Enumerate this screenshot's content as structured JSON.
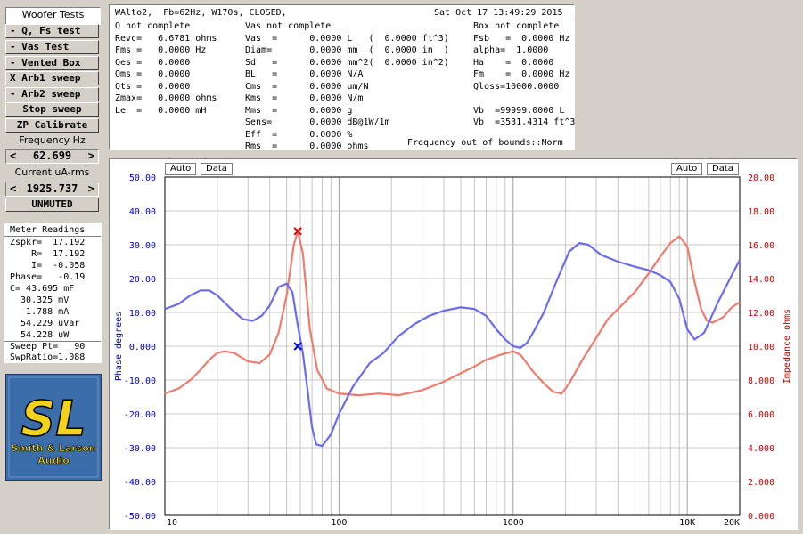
{
  "sidebar": {
    "title": "Woofer Tests",
    "buttons": [
      "- Q, Fs test",
      "- Vas Test",
      "- Vented Box",
      "X Arb1 sweep",
      "- Arb2 sweep",
      "Stop sweep",
      "ZP Calibrate"
    ],
    "freq_label": "Frequency Hz",
    "freq_value": "62.699",
    "current_label": "Current uA-rms",
    "current_value": "1925.737",
    "dec": "<",
    "inc": ">",
    "mute_button": "UNMUTED"
  },
  "meter": {
    "title": "Meter Readings",
    "lines": [
      "Zspkr=  17.192",
      "    R=  17.192",
      "    I=  -0.058",
      "Phase=   -0.19",
      "C= 43.695 mF",
      "  30.325 mV",
      "   1.788 mA",
      "  54.229 uVar",
      "  54.228 uW",
      "Sweep Pt=   90",
      "SwpRatio=1.088"
    ]
  },
  "logo": {
    "letters": "SL",
    "line1": "Smith & Larson",
    "line2": "Audio"
  },
  "params": {
    "header_left": "WAlto2,  Fb=62Hz, W170s, CLOSED,",
    "header_right": "Sat Oct 17 13:49:29 2015",
    "col1": [
      "Q not complete",
      "Revc=   6.6781 ohms",
      "Fms =   0.0000 Hz",
      "Qes =   0.0000",
      "Qms =   0.0000",
      "Qts =   0.0000",
      "Zmax=   0.0000 ohms",
      "Le  =   0.0000 mH"
    ],
    "col2": [
      "Vas not complete",
      "Vas  =      0.0000 L   (  0.0000 ft^3)",
      "Diam=       0.0000 mm  (  0.0000 in  )",
      "Sd   =      0.0000 mm^2(  0.0000 in^2)",
      "BL   =      0.0000 N/A",
      "Cms  =      0.0000 um/N",
      "Kms  =      0.0000 N/m",
      "Mms  =      0.0000 g",
      "Sens=       0.0000 dB@1W/1m",
      "Eff  =      0.0000 %",
      "Rms  =      0.0000 ohms"
    ],
    "col3": [
      "Box not complete",
      "Fsb   =  0.0000 Hz",
      "alpha=  1.0000",
      "Ha    =  0.0000",
      "Fm    =  0.0000 Hz",
      "Qloss=10000.0000",
      "",
      "Vb  =99999.0000 L",
      "Vb  =3531.4314 ft^3"
    ],
    "footer": "Frequency out of bounds::Norm"
  },
  "chart_controls": {
    "auto": "Auto",
    "data": "Data"
  },
  "colors": {
    "phase": "#6b6bf0",
    "impedance": "#f07a6e",
    "left_axis": "#0000c8",
    "right_axis": "#c80000",
    "marker_red": "#e00000",
    "marker_blue": "#0000e0"
  },
  "chart_data": {
    "type": "line",
    "xscale": "log",
    "xlim": [
      10,
      20000
    ],
    "x_tick_labels": [
      {
        "v": 10,
        "t": "10"
      },
      {
        "v": 100,
        "t": "100"
      },
      {
        "v": 1000,
        "t": "1000"
      },
      {
        "v": 10000,
        "t": "10K"
      },
      {
        "v": 20000,
        "t": "20K"
      }
    ],
    "y_left": {
      "label": "Phase degrees",
      "lim": [
        -50,
        50
      ],
      "ticks": [
        "50.00",
        "40.00",
        "30.00",
        "20.00",
        "10.00",
        "0.000",
        "-10.00",
        "-20.00",
        "-30.00",
        "-40.00",
        "-50.00"
      ]
    },
    "y_right": {
      "label": "Impedance ohms",
      "lim": [
        0,
        20
      ],
      "ticks": [
        "20.00",
        "18.00",
        "16.00",
        "14.00",
        "12.00",
        "10.00",
        "8.000",
        "6.000",
        "4.000",
        "2.000",
        "0.000"
      ]
    },
    "series": [
      {
        "axis": "left",
        "points": [
          [
            10,
            11
          ],
          [
            12,
            12.5
          ],
          [
            14,
            15
          ],
          [
            16,
            16.5
          ],
          [
            18,
            16.5
          ],
          [
            20,
            15
          ],
          [
            24,
            11
          ],
          [
            28,
            8
          ],
          [
            32,
            7.5
          ],
          [
            36,
            9
          ],
          [
            40,
            12
          ],
          [
            45,
            17.5
          ],
          [
            50,
            18.5
          ],
          [
            54,
            16
          ],
          [
            58,
            6
          ],
          [
            62,
            -2
          ],
          [
            66,
            -13
          ],
          [
            70,
            -24
          ],
          [
            74,
            -29
          ],
          [
            80,
            -29.5
          ],
          [
            90,
            -26
          ],
          [
            100,
            -20
          ],
          [
            120,
            -12
          ],
          [
            150,
            -5
          ],
          [
            180,
            -2
          ],
          [
            220,
            3
          ],
          [
            270,
            6.5
          ],
          [
            330,
            9
          ],
          [
            400,
            10.5
          ],
          [
            500,
            11.5
          ],
          [
            600,
            11
          ],
          [
            700,
            9
          ],
          [
            800,
            5
          ],
          [
            900,
            2
          ],
          [
            1000,
            0
          ],
          [
            1100,
            -0.5
          ],
          [
            1200,
            1
          ],
          [
            1300,
            4
          ],
          [
            1500,
            10
          ],
          [
            1800,
            20
          ],
          [
            2100,
            28
          ],
          [
            2400,
            30.5
          ],
          [
            2700,
            30
          ],
          [
            3200,
            27
          ],
          [
            4000,
            25
          ],
          [
            5000,
            23.5
          ],
          [
            6000,
            22.5
          ],
          [
            7000,
            21
          ],
          [
            8000,
            19
          ],
          [
            9000,
            14
          ],
          [
            10000,
            5
          ],
          [
            11000,
            2
          ],
          [
            12500,
            4
          ],
          [
            15000,
            13
          ],
          [
            18000,
            21
          ],
          [
            20000,
            25.5
          ]
        ]
      },
      {
        "axis": "right",
        "points": [
          [
            10,
            7.2
          ],
          [
            12,
            7.5
          ],
          [
            14,
            8
          ],
          [
            16,
            8.6
          ],
          [
            18,
            9.2
          ],
          [
            20,
            9.6
          ],
          [
            22,
            9.7
          ],
          [
            25,
            9.6
          ],
          [
            30,
            9.1
          ],
          [
            35,
            9
          ],
          [
            40,
            9.5
          ],
          [
            45,
            10.8
          ],
          [
            50,
            13
          ],
          [
            55,
            16
          ],
          [
            58,
            16.8
          ],
          [
            62,
            15.5
          ],
          [
            68,
            11
          ],
          [
            75,
            8.6
          ],
          [
            85,
            7.5
          ],
          [
            100,
            7.2
          ],
          [
            130,
            7.1
          ],
          [
            170,
            7.2
          ],
          [
            220,
            7.1
          ],
          [
            300,
            7.4
          ],
          [
            400,
            7.9
          ],
          [
            500,
            8.4
          ],
          [
            600,
            8.8
          ],
          [
            700,
            9.2
          ],
          [
            850,
            9.5
          ],
          [
            1000,
            9.7
          ],
          [
            1100,
            9.5
          ],
          [
            1300,
            8.5
          ],
          [
            1500,
            7.8
          ],
          [
            1700,
            7.3
          ],
          [
            1900,
            7.2
          ],
          [
            2100,
            7.8
          ],
          [
            2500,
            9.2
          ],
          [
            3000,
            10.5
          ],
          [
            3500,
            11.6
          ],
          [
            4000,
            12.2
          ],
          [
            5000,
            13.2
          ],
          [
            6000,
            14.3
          ],
          [
            7000,
            15.3
          ],
          [
            8000,
            16.1
          ],
          [
            9000,
            16.5
          ],
          [
            10000,
            15.9
          ],
          [
            11000,
            13.8
          ],
          [
            12000,
            12.2
          ],
          [
            13000,
            11.5
          ],
          [
            14000,
            11.4
          ],
          [
            16000,
            11.7
          ],
          [
            18000,
            12.3
          ],
          [
            20000,
            12.6
          ]
        ]
      }
    ],
    "markers": [
      {
        "axis": "right",
        "x": 58,
        "y": 16.8,
        "color": "red"
      },
      {
        "axis": "left",
        "x": 58,
        "y": 0,
        "color": "blue"
      }
    ]
  }
}
